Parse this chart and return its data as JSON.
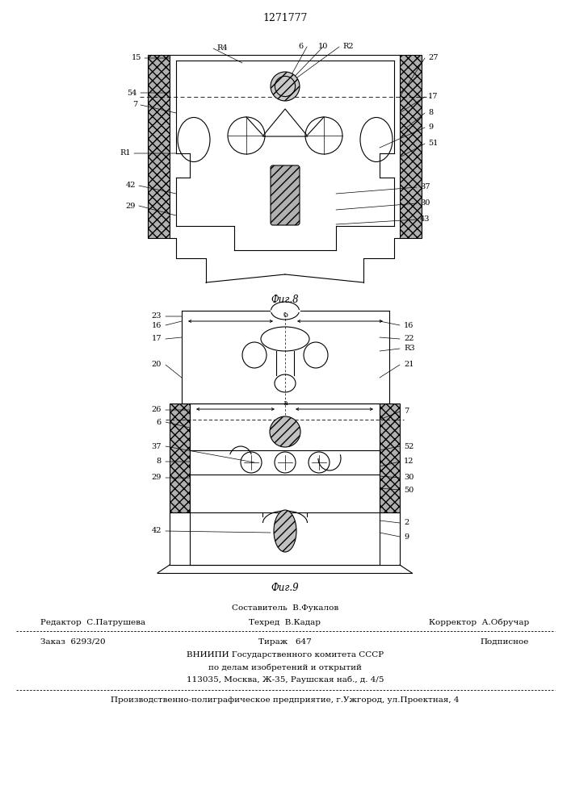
{
  "patent_number": "1271777",
  "fig8_label": "Фиг.8",
  "fig9_label": "Фиг.9",
  "footer_line1": "Составитель  В.Фукалов",
  "footer_line2_left": "Редактор  С.Патрушева",
  "footer_line2_mid": "Техред  В.Кадар",
  "footer_line2_right": "Корректор  А.Обручар",
  "footer_line3_left": "Заказ  6293/20",
  "footer_line3_mid": "Тираж   647",
  "footer_line3_right": "Подписное",
  "footer_line4": "ВНИИПИ Государственного комитета СССР",
  "footer_line5": "по делам изобретений и открытий",
  "footer_line6": "113035, Москва, Ж-35, Раушская наб., д. 4/5",
  "footer_line7": "Производственно-полиграфическое предприятие, г.Ужгород, ул.Проектная, 4",
  "bg_color": "#ffffff",
  "lc": "#000000"
}
